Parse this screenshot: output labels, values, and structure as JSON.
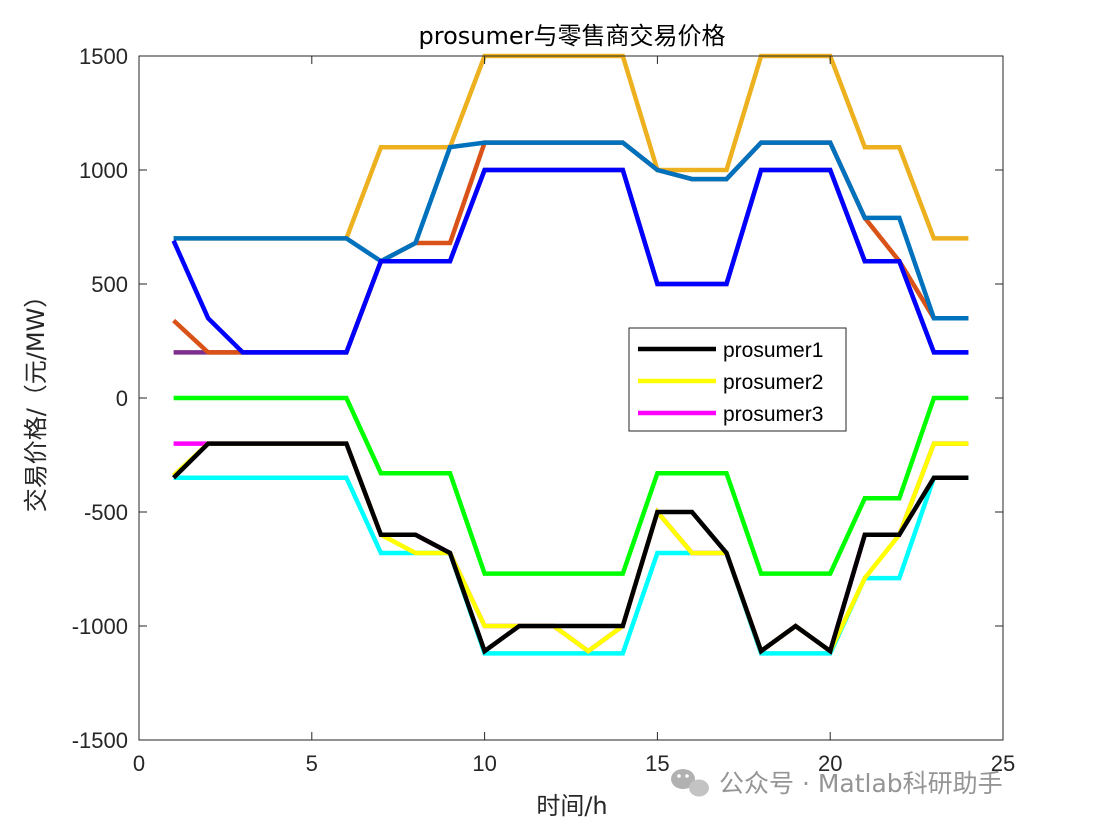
{
  "chart_data": {
    "type": "line",
    "title": "prosumer与零售商交易价格",
    "xlabel": "时间/h",
    "ylabel": "交易价格/（元/MW）",
    "xlim": [
      0,
      25
    ],
    "ylim": [
      -1500,
      1500
    ],
    "xticks": [
      "0",
      "5",
      "10",
      "15",
      "20",
      "25"
    ],
    "yticks": [
      "1500",
      "1000",
      "500",
      "0",
      "-500",
      "-1000",
      "-1500"
    ],
    "grid": false,
    "legend_position": "center-right",
    "legend": [
      "prosumer1",
      "prosumer2",
      "prosumer3"
    ],
    "x": [
      1,
      2,
      3,
      4,
      5,
      6,
      7,
      8,
      9,
      10,
      11,
      12,
      13,
      14,
      15,
      16,
      17,
      18,
      19,
      20,
      21,
      22,
      23,
      24
    ],
    "series": [
      {
        "name": "prosumer1",
        "color": "#000000",
        "values": [
          -350,
          -200,
          -200,
          -200,
          -200,
          -200,
          -600,
          -600,
          -680,
          -1110,
          -1000,
          -1000,
          -1000,
          -1000,
          -500,
          -500,
          -680,
          -1110,
          -1000,
          -1110,
          -600,
          -600,
          -350,
          -350
        ]
      },
      {
        "name": "prosumer2",
        "color": "#FFFF00",
        "values": [
          -340,
          -200,
          -200,
          -200,
          -200,
          -200,
          -600,
          -680,
          -680,
          -1000,
          -1000,
          -1000,
          -1110,
          -1000,
          -500,
          -680,
          -680,
          -1110,
          -1000,
          -1110,
          -790,
          -600,
          -200,
          -200
        ]
      },
      {
        "name": "prosumer3",
        "color": "#FF00FF",
        "values": [
          -200,
          -200,
          -200,
          -200,
          -200,
          -200,
          -600,
          -600,
          -680,
          -1000,
          -1000,
          -1000,
          -1110,
          -1000,
          -500,
          -680,
          -680,
          -1110,
          -1000,
          -1110,
          -600,
          -600,
          -200,
          -200
        ]
      },
      {
        "color": "#00FFFF",
        "values": [
          -350,
          -350,
          -350,
          -350,
          -350,
          -350,
          -680,
          -680,
          -680,
          -1120,
          -1120,
          -1120,
          -1120,
          -1120,
          -680,
          -680,
          -680,
          -1120,
          -1120,
          -1120,
          -790,
          -790,
          -350,
          -350
        ]
      },
      {
        "color": "#00FF00",
        "values": [
          0,
          0,
          0,
          0,
          0,
          0,
          -330,
          -330,
          -330,
          -770,
          -770,
          -770,
          -770,
          -770,
          -330,
          -330,
          -330,
          -770,
          -770,
          -770,
          -440,
          -440,
          0,
          0
        ]
      },
      {
        "color": "#0000FF",
        "values": [
          690,
          350,
          200,
          200,
          200,
          200,
          600,
          600,
          600,
          1000,
          1000,
          1000,
          1000,
          1000,
          500,
          500,
          500,
          1000,
          1000,
          1000,
          600,
          600,
          200,
          200
        ]
      },
      {
        "color": "#0072BD",
        "values": [
          700,
          700,
          700,
          700,
          700,
          700,
          600,
          680,
          1100,
          1120,
          1120,
          1120,
          1120,
          1120,
          1000,
          960,
          960,
          1120,
          1120,
          1120,
          790,
          790,
          350,
          350
        ]
      },
      {
        "color": "#D95319",
        "values": [
          340,
          200,
          200,
          200,
          200,
          200,
          600,
          680,
          680,
          1120,
          1120,
          1120,
          1120,
          1120,
          1000,
          960,
          960,
          1120,
          1120,
          1120,
          790,
          600,
          350,
          350
        ]
      },
      {
        "color": "#EDB120",
        "values": [
          700,
          700,
          700,
          700,
          700,
          700,
          1100,
          1100,
          1100,
          1500,
          1500,
          1500,
          1500,
          1500,
          1000,
          1000,
          1000,
          1500,
          1500,
          1500,
          1100,
          1100,
          700,
          700
        ]
      },
      {
        "color": "#7E2F8E",
        "values": [
          200,
          200,
          200,
          200,
          200,
          200,
          600,
          600,
          600,
          1000,
          1000,
          1000,
          1000,
          1000,
          500,
          500,
          500,
          1000,
          1000,
          1000,
          600,
          600,
          200,
          200
        ]
      }
    ]
  },
  "watermark": {
    "text": "公众号 · Matlab科研助手",
    "icon": "wechat-icon"
  }
}
